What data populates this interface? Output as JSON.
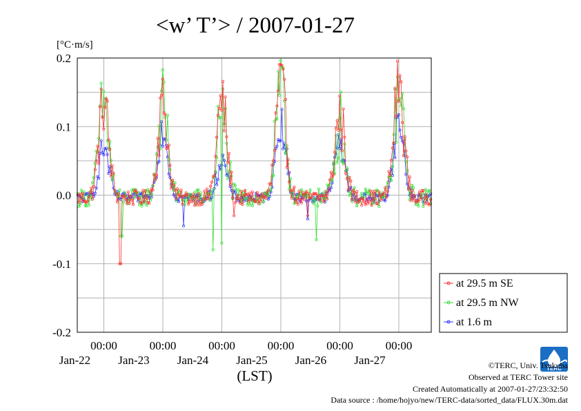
{
  "title": "<w’ T’> / 2007-01-27",
  "footer": {
    "copyright": "©TERC, Univ. Tsukuba",
    "site": "Observed at TERC Tower site",
    "created": "Created Automatically at 2007-01-27/23:32:50",
    "source": "Data source : /home/hojyo/new/TERC-data/sorted_data/FLUX.30m.dat"
  },
  "logo": {
    "text": "TERC",
    "color": "#1a6fc4"
  },
  "chart_data": {
    "type": "line",
    "ylabel": "[°C·m/s]",
    "xlabel": "(LST)",
    "ylim": [
      -0.2,
      0.2
    ],
    "yticks": [
      0.2,
      0.1,
      0.0,
      -0.1,
      -0.2
    ],
    "ytick_labels": [
      "0.2",
      "0.1",
      "0.0",
      "-0.1",
      "-0.2"
    ],
    "xlim_days": [
      21.55,
      27.55
    ],
    "xticks": [
      {
        "day": 22,
        "time": "00:00",
        "date": "Jan-22"
      },
      {
        "day": 23,
        "time": "00:00",
        "date": "Jan-23"
      },
      {
        "day": 24,
        "time": "00:00",
        "date": "Jan-24"
      },
      {
        "day": 25,
        "time": "00:00",
        "date": "Jan-25"
      },
      {
        "day": 26,
        "time": "00:00",
        "date": "Jan-26"
      },
      {
        "day": 27,
        "time": "00:00",
        "date": "Jan-27"
      }
    ],
    "grid": true,
    "legend_position": "right",
    "series": [
      {
        "name": "at 29.5 m SE",
        "color": "#ff3030",
        "peaks": [
          0.15,
          0.15,
          0.15,
          0.18,
          0.13,
          0.18
        ],
        "noise": 0.022,
        "dips": [
          [
            22.28,
            -0.1
          ],
          [
            24.2,
            -0.03
          ],
          [
            25.45,
            -0.03
          ]
        ]
      },
      {
        "name": "at 29.5 m NW",
        "color": "#30e030",
        "peaks": [
          0.15,
          0.15,
          0.14,
          0.17,
          0.12,
          0.16
        ],
        "noise": 0.026,
        "dips": [
          [
            22.3,
            -0.06
          ],
          [
            23.85,
            -0.08
          ],
          [
            24.0,
            -0.07
          ],
          [
            25.6,
            -0.065
          ]
        ]
      },
      {
        "name": "at 1.6 m",
        "color": "#3030ff",
        "peaks": [
          0.08,
          0.11,
          0.06,
          0.12,
          0.09,
          0.12
        ],
        "noise": 0.014,
        "dips": [
          [
            23.35,
            -0.045
          ],
          [
            25.45,
            -0.035
          ]
        ]
      }
    ],
    "peak_day_offsets": [
      0.12,
      0.12,
      0.12,
      0.12,
      0.12,
      0.12
    ],
    "series_start_day": 21.56,
    "series_end_day": 27.54,
    "sample_interval_days": 0.0208333
  }
}
